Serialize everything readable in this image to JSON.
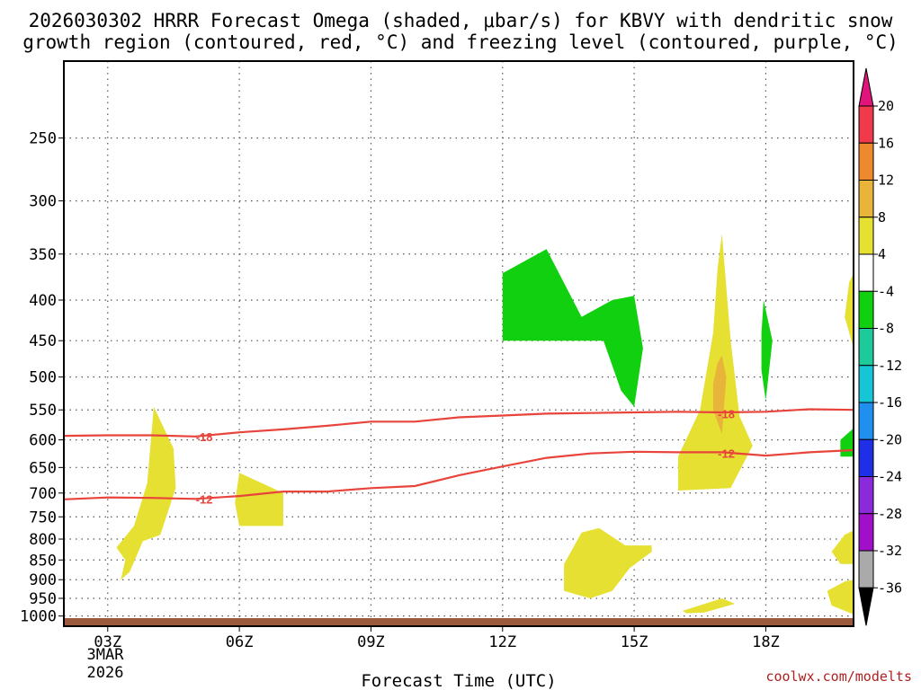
{
  "chart_data": {
    "type": "heatmap",
    "title_lines": [
      "2026030302 HRRR Forecast Omega (shaded, μbar/s) for KBVY with dendritic snow",
      "growth region (contoured, red, °C) and freezing level (contoured, purple, °C)"
    ],
    "xlabel": "Forecast Time (UTC)",
    "x_date_label": [
      "3MAR",
      "2026"
    ],
    "x_range_hours": [
      2,
      20
    ],
    "x_ticks": [
      {
        "hour": 3,
        "label": "03Z"
      },
      {
        "hour": 6,
        "label": "06Z"
      },
      {
        "hour": 9,
        "label": "09Z"
      },
      {
        "hour": 12,
        "label": "12Z"
      },
      {
        "hour": 15,
        "label": "15Z"
      },
      {
        "hour": 18,
        "label": "18Z"
      }
    ],
    "y_scale": "log-pressure",
    "y_range_mb": [
      1030,
      200
    ],
    "y_ticks": [
      250,
      300,
      350,
      400,
      450,
      500,
      550,
      600,
      650,
      700,
      750,
      800,
      850,
      900,
      950,
      1000
    ],
    "grid": true,
    "colorbar": {
      "labels": [
        "20",
        "16",
        "12",
        "8",
        "4",
        "-4",
        "-8",
        "-12",
        "-16",
        "-20",
        "-24",
        "-28",
        "-32",
        "-36"
      ],
      "bins": [
        {
          "color": "#f03a4b"
        },
        {
          "color": "#ee8a2e"
        },
        {
          "color": "#e9b43a"
        },
        {
          "color": "#e6e033"
        },
        {
          "color": "#ffffff"
        },
        {
          "color": "#10d010"
        },
        {
          "color": "#1ec99a"
        },
        {
          "color": "#16c5d6"
        },
        {
          "color": "#1f8ff0"
        },
        {
          "color": "#1f2fe8"
        },
        {
          "color": "#8a2ad8"
        },
        {
          "color": "#a010c8"
        },
        {
          "color": "#aaaaaa"
        }
      ],
      "top_arrow_color": "#e0147a",
      "bottom_arrow_color": "#000000"
    },
    "omega_regions": [
      {
        "color": "#e6e033",
        "points": [
          [
            3.4,
            850
          ],
          [
            3.2,
            820
          ],
          [
            3.6,
            770
          ],
          [
            3.9,
            680
          ],
          [
            4.05,
            545
          ],
          [
            4.5,
            615
          ],
          [
            4.55,
            690
          ],
          [
            4.2,
            790
          ],
          [
            3.8,
            805
          ],
          [
            3.5,
            880
          ],
          [
            3.3,
            900
          ]
        ]
      },
      {
        "color": "#e6e033",
        "points": [
          [
            5.9,
            720
          ],
          [
            6.0,
            660
          ],
          [
            7.0,
            700
          ],
          [
            7.0,
            770
          ],
          [
            6.0,
            770
          ]
        ]
      },
      {
        "color": "#e6e033",
        "points": [
          [
            13.4,
            860
          ],
          [
            13.8,
            785
          ],
          [
            14.2,
            775
          ],
          [
            14.8,
            815
          ],
          [
            15.4,
            815
          ],
          [
            15.4,
            830
          ],
          [
            14.9,
            870
          ],
          [
            14.5,
            930
          ],
          [
            14.0,
            950
          ],
          [
            13.4,
            930
          ]
        ]
      },
      {
        "color": "#e6e033",
        "points": [
          [
            16.1,
            985
          ],
          [
            17.0,
            950
          ],
          [
            17.3,
            965
          ],
          [
            16.6,
            990
          ],
          [
            16.2,
            992
          ]
        ]
      },
      {
        "color": "#e6e033",
        "points": [
          [
            16.0,
            630
          ],
          [
            16.5,
            550
          ],
          [
            16.8,
            440
          ],
          [
            16.9,
            365
          ],
          [
            17.0,
            330
          ],
          [
            17.2,
            450
          ],
          [
            17.4,
            560
          ],
          [
            17.7,
            610
          ],
          [
            17.2,
            690
          ],
          [
            16.0,
            695
          ]
        ]
      },
      {
        "color": "#e9b43a",
        "points": [
          [
            16.8,
            510
          ],
          [
            16.9,
            480
          ],
          [
            17.0,
            470
          ],
          [
            17.1,
            500
          ],
          [
            17.0,
            590
          ],
          [
            16.8,
            550
          ]
        ]
      },
      {
        "color": "#e6e033",
        "points": [
          [
            19.8,
            420
          ],
          [
            19.9,
            380
          ],
          [
            20.0,
            370
          ],
          [
            20.0,
            460
          ]
        ]
      },
      {
        "color": "#e6e033",
        "points": [
          [
            19.5,
            830
          ],
          [
            19.8,
            790
          ],
          [
            20.0,
            780
          ],
          [
            20.0,
            860
          ],
          [
            19.7,
            860
          ]
        ]
      },
      {
        "color": "#e6e033",
        "points": [
          [
            19.4,
            930
          ],
          [
            19.8,
            905
          ],
          [
            20.0,
            900
          ],
          [
            20.0,
            995
          ],
          [
            19.5,
            970
          ]
        ]
      },
      {
        "color": "#10d010",
        "points": [
          [
            12.0,
            370
          ],
          [
            13.0,
            345
          ],
          [
            13.8,
            420
          ],
          [
            14.5,
            400
          ],
          [
            15.0,
            395
          ],
          [
            15.2,
            460
          ],
          [
            15.0,
            545
          ],
          [
            14.7,
            520
          ],
          [
            14.3,
            450
          ],
          [
            13.0,
            450
          ],
          [
            12.0,
            450
          ]
        ]
      },
      {
        "color": "#10d010",
        "points": [
          [
            17.9,
            440
          ],
          [
            17.95,
            400
          ],
          [
            18.15,
            450
          ],
          [
            18.0,
            535
          ],
          [
            17.9,
            490
          ]
        ]
      },
      {
        "color": "#10d010",
        "points": [
          [
            19.7,
            600
          ],
          [
            20.0,
            580
          ],
          [
            20.0,
            630
          ],
          [
            19.7,
            630
          ]
        ]
      }
    ],
    "contours": [
      {
        "name": "-18",
        "color": "#e8443c",
        "points": [
          [
            2,
            593
          ],
          [
            3,
            592
          ],
          [
            4,
            592
          ],
          [
            5,
            594
          ],
          [
            6,
            587
          ],
          [
            7,
            582
          ],
          [
            8,
            576
          ],
          [
            9,
            569
          ],
          [
            10,
            569
          ],
          [
            11,
            562
          ],
          [
            12,
            559
          ],
          [
            13,
            556
          ],
          [
            14,
            555
          ],
          [
            15,
            554
          ],
          [
            16,
            553
          ],
          [
            17,
            554
          ],
          [
            18,
            553
          ],
          [
            19,
            549
          ],
          [
            20,
            550
          ]
        ],
        "label_hour": 5.2,
        "label_mb": 594
      },
      {
        "name": "-12",
        "color": "#e8443c",
        "points": [
          [
            2,
            713
          ],
          [
            3,
            709
          ],
          [
            4,
            710
          ],
          [
            5,
            712
          ],
          [
            6,
            706
          ],
          [
            7,
            697
          ],
          [
            8,
            697
          ],
          [
            9,
            690
          ],
          [
            10,
            686
          ],
          [
            11,
            665
          ],
          [
            12,
            648
          ],
          [
            13,
            632
          ],
          [
            14,
            624
          ],
          [
            15,
            621
          ],
          [
            16,
            622
          ],
          [
            17,
            622
          ],
          [
            18,
            628
          ],
          [
            19,
            622
          ],
          [
            20,
            618
          ]
        ],
        "label_hour": 5.2,
        "label_mb": 712
      }
    ],
    "contour_label_positions": [
      {
        "text": "-18",
        "hour": 5.2,
        "mb": 594
      },
      {
        "text": "-18",
        "hour": 17.1,
        "mb": 556
      },
      {
        "text": "-12",
        "hour": 5.2,
        "mb": 712
      },
      {
        "text": "-12",
        "hour": 17.1,
        "mb": 624
      }
    ],
    "terrain_color": "#9b5a3c"
  },
  "watermark": "coolwx.com/modelts"
}
